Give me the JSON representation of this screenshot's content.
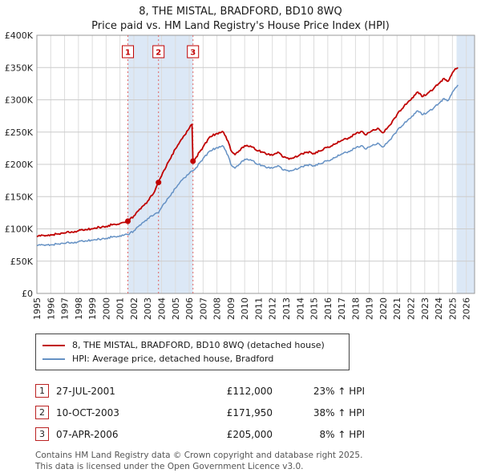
{
  "chart_data": {
    "type": "line",
    "title": "8, THE MISTAL, BRADFORD, BD10 8WQ",
    "subtitle": "Price paid vs. HM Land Registry's House Price Index (HPI)",
    "x_range": [
      1995,
      2026.6
    ],
    "y_range": [
      0,
      400000
    ],
    "x_ticks": [
      1995,
      1996,
      1997,
      1998,
      1999,
      2000,
      2001,
      2002,
      2003,
      2004,
      2005,
      2006,
      2007,
      2008,
      2009,
      2010,
      2011,
      2012,
      2013,
      2014,
      2015,
      2016,
      2017,
      2018,
      2019,
      2020,
      2021,
      2022,
      2023,
      2024,
      2025,
      2026
    ],
    "y_ticks": [
      {
        "value": 0,
        "label": "£0"
      },
      {
        "value": 50000,
        "label": "£50K"
      },
      {
        "value": 100000,
        "label": "£100K"
      },
      {
        "value": 150000,
        "label": "£150K"
      },
      {
        "value": 200000,
        "label": "£200K"
      },
      {
        "value": 250000,
        "label": "£250K"
      },
      {
        "value": 300000,
        "label": "£300K"
      },
      {
        "value": 350000,
        "label": "£350K"
      },
      {
        "value": 400000,
        "label": "£400K"
      }
    ],
    "colors": {
      "property": "#c00000",
      "hpi": "#6591c4",
      "shade": "#dce8f6",
      "sale_line": "#e06666",
      "grid": "#cccccc",
      "year_grid": "#dcdcdc",
      "border": "#999999",
      "marker": "#c00000"
    },
    "shaded_regions": [
      [
        2001.57,
        2006.27
      ],
      [
        2025.3,
        2026.6
      ]
    ],
    "series": [
      {
        "name": "8, THE MISTAL, BRADFORD, BD10 8WQ (detached house)",
        "color": "#c00000",
        "width": 1.8,
        "points": [
          [
            1995.0,
            88000
          ],
          [
            1995.25,
            89000
          ],
          [
            1995.5,
            90000
          ],
          [
            1995.75,
            89500
          ],
          [
            1996.0,
            91000
          ],
          [
            1996.5,
            92000
          ],
          [
            1997.0,
            93500
          ],
          [
            1997.5,
            95500
          ],
          [
            1998.0,
            97000
          ],
          [
            1998.5,
            99000
          ],
          [
            1999.0,
            100000
          ],
          [
            1999.5,
            102500
          ],
          [
            2000.0,
            104000
          ],
          [
            2000.5,
            107000
          ],
          [
            2001.0,
            108500
          ],
          [
            2001.3,
            110000
          ],
          [
            2001.57,
            112000
          ],
          [
            2002.0,
            120000
          ],
          [
            2002.5,
            131000
          ],
          [
            2003.0,
            143000
          ],
          [
            2003.5,
            158000
          ],
          [
            2003.78,
            171950
          ],
          [
            2004.0,
            182000
          ],
          [
            2004.5,
            204000
          ],
          [
            2005.0,
            224000
          ],
          [
            2005.5,
            240000
          ],
          [
            2006.0,
            256000
          ],
          [
            2006.2,
            262000
          ],
          [
            2006.27,
            205000
          ],
          [
            2006.5,
            211000
          ],
          [
            2007.0,
            227000
          ],
          [
            2007.5,
            243000
          ],
          [
            2008.0,
            248000
          ],
          [
            2008.4,
            251000
          ],
          [
            2008.8,
            236000
          ],
          [
            2009.0,
            222000
          ],
          [
            2009.3,
            215000
          ],
          [
            2009.6,
            221000
          ],
          [
            2010.0,
            229000
          ],
          [
            2010.5,
            227000
          ],
          [
            2011.0,
            221000
          ],
          [
            2011.5,
            217000
          ],
          [
            2012.0,
            214000
          ],
          [
            2012.4,
            219000
          ],
          [
            2012.8,
            211000
          ],
          [
            2013.2,
            208000
          ],
          [
            2013.6,
            211000
          ],
          [
            2014.0,
            215000
          ],
          [
            2014.5,
            219000
          ],
          [
            2015.0,
            217000
          ],
          [
            2015.5,
            221000
          ],
          [
            2016.0,
            227000
          ],
          [
            2016.5,
            231000
          ],
          [
            2017.0,
            237000
          ],
          [
            2017.5,
            241000
          ],
          [
            2018.0,
            247000
          ],
          [
            2018.4,
            251000
          ],
          [
            2018.8,
            246000
          ],
          [
            2019.2,
            252000
          ],
          [
            2019.6,
            256000
          ],
          [
            2020.0,
            249000
          ],
          [
            2020.5,
            261000
          ],
          [
            2021.0,
            277000
          ],
          [
            2021.5,
            290000
          ],
          [
            2022.0,
            300000
          ],
          [
            2022.5,
            312000
          ],
          [
            2022.8,
            305000
          ],
          [
            2023.2,
            310000
          ],
          [
            2023.6,
            316000
          ],
          [
            2024.0,
            325000
          ],
          [
            2024.4,
            333000
          ],
          [
            2024.7,
            329000
          ],
          [
            2025.0,
            342000
          ],
          [
            2025.2,
            348000
          ],
          [
            2025.4,
            350000
          ]
        ]
      },
      {
        "name": "HPI: Average price, detached house, Bradford",
        "color": "#6591c4",
        "width": 1.5,
        "points": [
          [
            1995.0,
            74000
          ],
          [
            1995.5,
            75000
          ],
          [
            1996.0,
            75500
          ],
          [
            1996.5,
            76500
          ],
          [
            1997.0,
            77500
          ],
          [
            1997.5,
            79000
          ],
          [
            1998.0,
            80000
          ],
          [
            1998.5,
            81500
          ],
          [
            1999.0,
            82500
          ],
          [
            1999.5,
            84000
          ],
          [
            2000.0,
            85500
          ],
          [
            2000.5,
            88000
          ],
          [
            2001.0,
            89500
          ],
          [
            2001.57,
            91000
          ],
          [
            2002.0,
            97000
          ],
          [
            2002.5,
            106000
          ],
          [
            2003.0,
            116000
          ],
          [
            2003.5,
            123000
          ],
          [
            2003.78,
            124500
          ],
          [
            2004.0,
            133000
          ],
          [
            2004.5,
            148000
          ],
          [
            2005.0,
            163000
          ],
          [
            2005.5,
            176000
          ],
          [
            2006.0,
            186000
          ],
          [
            2006.27,
            190000
          ],
          [
            2006.5,
            195000
          ],
          [
            2007.0,
            209000
          ],
          [
            2007.5,
            221000
          ],
          [
            2008.0,
            226000
          ],
          [
            2008.4,
            229000
          ],
          [
            2008.8,
            214000
          ],
          [
            2009.0,
            200000
          ],
          [
            2009.3,
            194000
          ],
          [
            2009.6,
            200000
          ],
          [
            2010.0,
            208000
          ],
          [
            2010.5,
            206000
          ],
          [
            2011.0,
            200000
          ],
          [
            2011.5,
            196000
          ],
          [
            2012.0,
            194000
          ],
          [
            2012.4,
            198000
          ],
          [
            2012.8,
            191000
          ],
          [
            2013.2,
            189000
          ],
          [
            2013.6,
            192000
          ],
          [
            2014.0,
            195000
          ],
          [
            2014.5,
            199000
          ],
          [
            2015.0,
            198000
          ],
          [
            2015.5,
            201000
          ],
          [
            2016.0,
            206000
          ],
          [
            2016.5,
            210000
          ],
          [
            2017.0,
            216000
          ],
          [
            2017.5,
            220000
          ],
          [
            2018.0,
            225000
          ],
          [
            2018.4,
            229000
          ],
          [
            2018.8,
            224000
          ],
          [
            2019.2,
            229000
          ],
          [
            2019.6,
            233000
          ],
          [
            2020.0,
            227000
          ],
          [
            2020.5,
            238000
          ],
          [
            2021.0,
            252000
          ],
          [
            2021.5,
            263000
          ],
          [
            2022.0,
            272000
          ],
          [
            2022.5,
            283000
          ],
          [
            2022.8,
            277000
          ],
          [
            2023.2,
            281000
          ],
          [
            2023.6,
            286000
          ],
          [
            2024.0,
            294000
          ],
          [
            2024.4,
            302000
          ],
          [
            2024.7,
            299000
          ],
          [
            2025.0,
            312000
          ],
          [
            2025.2,
            318000
          ],
          [
            2025.4,
            323000
          ]
        ]
      }
    ],
    "sales": [
      {
        "n": "1",
        "x": 2001.57,
        "price": 112000,
        "date": "27-JUL-2001",
        "price_label": "£112,000",
        "hpi_label": "23% ↑ HPI"
      },
      {
        "n": "2",
        "x": 2003.78,
        "price": 171950,
        "date": "10-OCT-2003",
        "price_label": "£171,950",
        "hpi_label": "38% ↑ HPI"
      },
      {
        "n": "3",
        "x": 2006.27,
        "price": 205000,
        "date": "07-APR-2006",
        "price_label": "£205,000",
        "hpi_label": "8% ↑ HPI"
      }
    ]
  },
  "footer": {
    "line1": "Contains HM Land Registry data © Crown copyright and database right 2025.",
    "line2": "This data is licensed under the Open Government Licence v3.0."
  }
}
